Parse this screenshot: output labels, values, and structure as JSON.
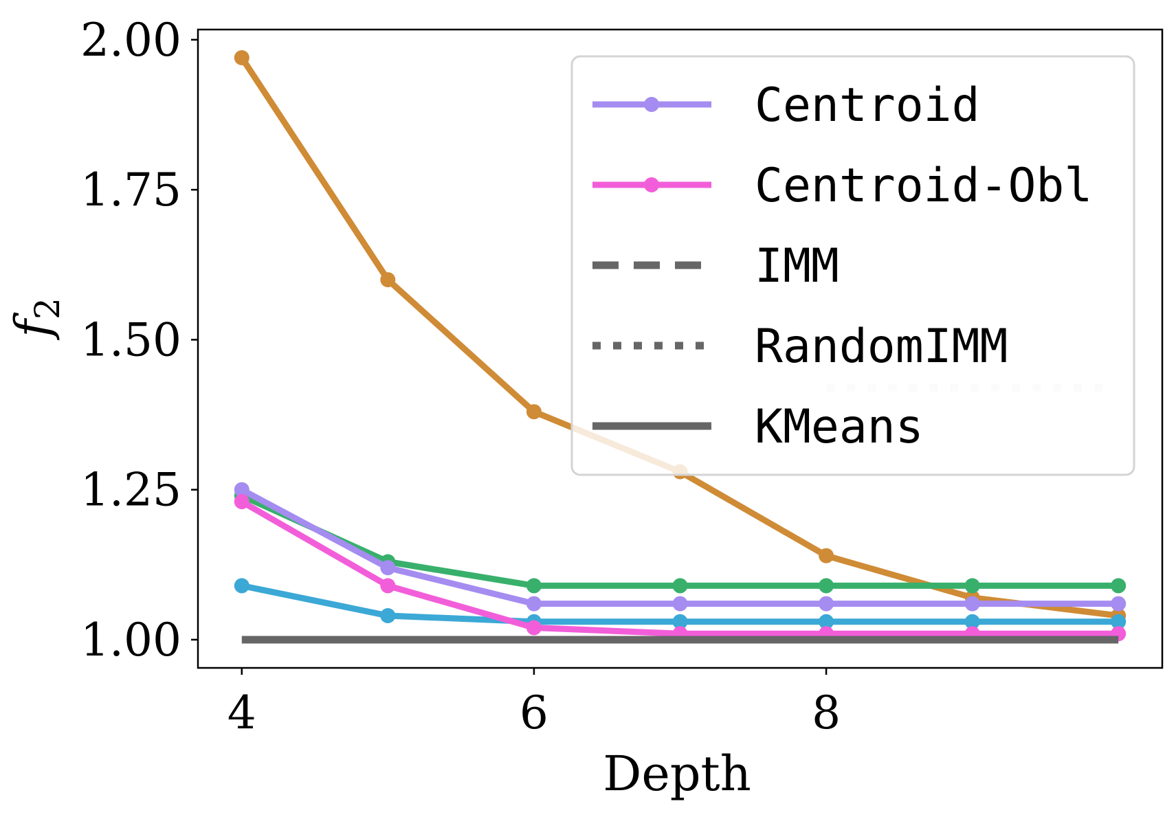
{
  "chart_data": {
    "type": "line",
    "xlabel": "Depth",
    "ylabel": "f",
    "ylabel_sub": "2",
    "xlim": [
      3.7,
      10.3
    ],
    "ylim": [
      0.953,
      2.017
    ],
    "xticks": [
      {
        "value": 4,
        "label": "4"
      },
      {
        "value": 6,
        "label": "6"
      },
      {
        "value": 8,
        "label": "8"
      }
    ],
    "yticks": [
      {
        "value": 1.0,
        "label": "1.00"
      },
      {
        "value": 1.25,
        "label": "1.25"
      },
      {
        "value": 1.5,
        "label": "1.50"
      },
      {
        "value": 1.75,
        "label": "1.75"
      },
      {
        "value": 2.0,
        "label": "2.00"
      }
    ],
    "grid": false,
    "legend_position": "top-right",
    "series": [
      {
        "key": "orange",
        "legend": false,
        "color": "#cf8b35",
        "style": "solid",
        "markers": true,
        "x": [
          4,
          5,
          6,
          7,
          8,
          9,
          10
        ],
        "y": [
          1.97,
          1.6,
          1.38,
          1.28,
          1.14,
          1.07,
          1.04
        ]
      },
      {
        "key": "cyan",
        "legend": false,
        "color": "#3ba8d6",
        "style": "solid",
        "markers": true,
        "x": [
          4,
          5,
          6,
          7,
          8,
          9,
          10
        ],
        "y": [
          1.09,
          1.04,
          1.03,
          1.03,
          1.03,
          1.03,
          1.03
        ]
      },
      {
        "key": "green",
        "legend": false,
        "color": "#38b06c",
        "style": "solid",
        "markers": true,
        "x": [
          4,
          5,
          6,
          7,
          8,
          9,
          10
        ],
        "y": [
          1.24,
          1.13,
          1.09,
          1.09,
          1.09,
          1.09,
          1.09
        ]
      },
      {
        "key": "centroid",
        "legend": true,
        "name": "Centroid",
        "color": "#a58cf0",
        "style": "solid",
        "markers": true,
        "x": [
          4,
          5,
          6,
          7,
          8,
          9,
          10
        ],
        "y": [
          1.25,
          1.12,
          1.06,
          1.06,
          1.06,
          1.06,
          1.06
        ]
      },
      {
        "key": "centroid-obl",
        "legend": true,
        "name": "Centroid-Obl",
        "color": "#f25ed9",
        "style": "solid",
        "markers": true,
        "x": [
          4,
          5,
          6,
          7,
          8,
          9,
          10
        ],
        "y": [
          1.23,
          1.09,
          1.02,
          1.01,
          1.01,
          1.01,
          1.01
        ]
      },
      {
        "key": "imm",
        "legend": true,
        "name": "IMM",
        "color": "#666666",
        "style": "dashed",
        "markers": false,
        "x": [],
        "y": []
      },
      {
        "key": "randomimm",
        "legend": true,
        "name": "RandomIMM",
        "color": "#666666",
        "style": "dotted",
        "markers": false,
        "x": [],
        "y": []
      },
      {
        "key": "kmeans",
        "legend": true,
        "name": "KMeans",
        "color": "#666666",
        "style": "solid",
        "markers": false,
        "x": [
          4,
          10
        ],
        "y": [
          1.0,
          1.0
        ]
      },
      {
        "key": "random-faint",
        "legend": false,
        "color": "#e6e6e6",
        "style": "dotted",
        "markers": false,
        "x": [
          8,
          9.95
        ],
        "y": [
          1.42,
          1.42
        ]
      }
    ]
  }
}
